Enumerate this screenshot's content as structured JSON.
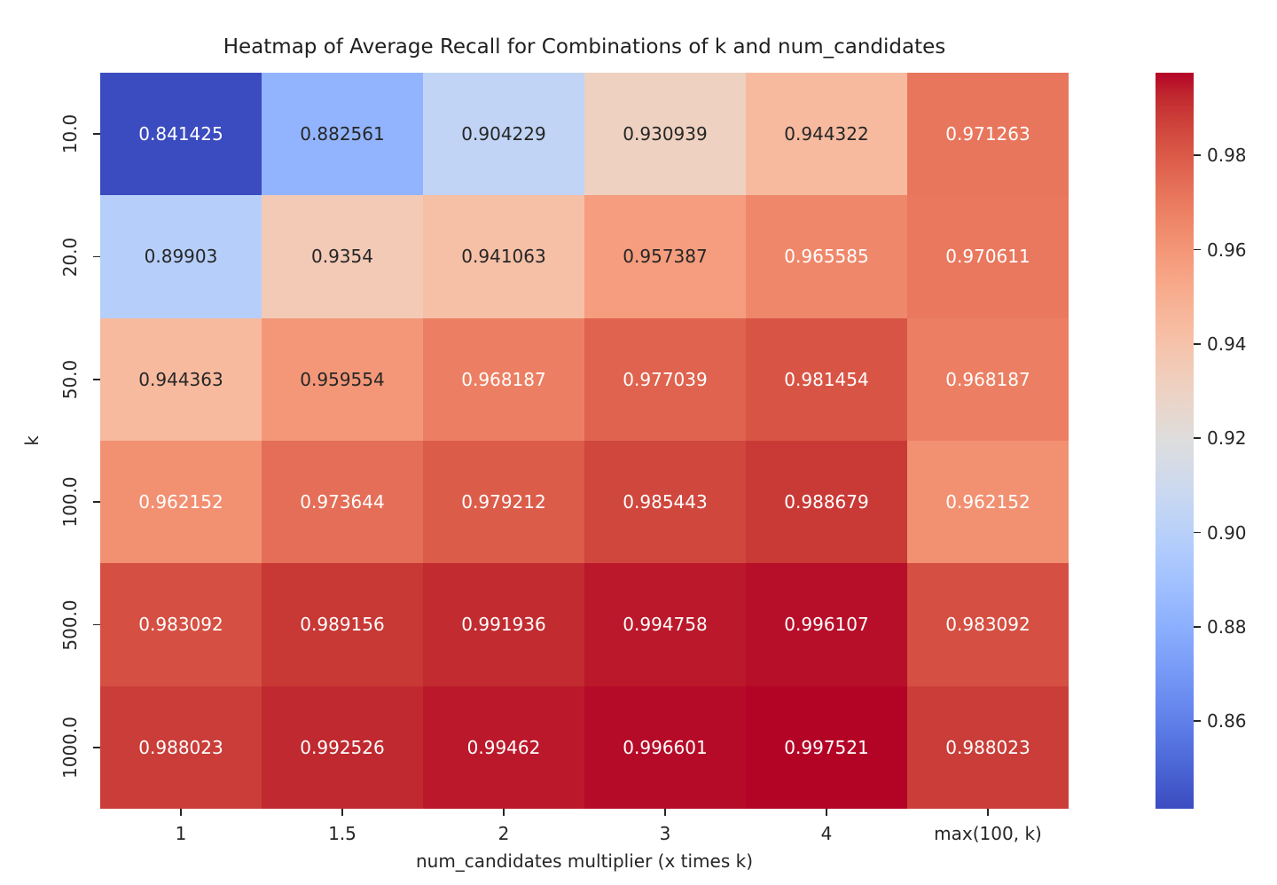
{
  "figure": {
    "background": "#ffffff"
  },
  "chart_data": {
    "type": "heatmap",
    "title": "Heatmap of Average Recall for Combinations of k and num_candidates",
    "xlabel": "num_candidates multiplier (x times k)",
    "ylabel": "k",
    "x_tick_labels": [
      "1",
      "1.5",
      "2",
      "3",
      "4",
      "max(100, k)"
    ],
    "y_tick_labels": [
      "10.0",
      "20.0",
      "50.0",
      "100.0",
      "500.0",
      "1000.0"
    ],
    "values": [
      [
        0.841425,
        0.882561,
        0.904229,
        0.930939,
        0.944322,
        0.971263
      ],
      [
        0.89903,
        0.9354,
        0.941063,
        0.957387,
        0.965585,
        0.970611
      ],
      [
        0.944363,
        0.959554,
        0.968187,
        0.977039,
        0.981454,
        0.968187
      ],
      [
        0.962152,
        0.973644,
        0.979212,
        0.985443,
        0.988679,
        0.962152
      ],
      [
        0.983092,
        0.989156,
        0.991936,
        0.994758,
        0.996107,
        0.983092
      ],
      [
        0.988023,
        0.992526,
        0.99462,
        0.996601,
        0.997521,
        0.988023
      ]
    ],
    "cell_labels": [
      [
        "0.841425",
        "0.882561",
        "0.904229",
        "0.930939",
        "0.944322",
        "0.971263"
      ],
      [
        "0.89903",
        "0.9354",
        "0.941063",
        "0.957387",
        "0.965585",
        "0.970611"
      ],
      [
        "0.944363",
        "0.959554",
        "0.968187",
        "0.977039",
        "0.981454",
        "0.968187"
      ],
      [
        "0.962152",
        "0.973644",
        "0.979212",
        "0.985443",
        "0.988679",
        "0.962152"
      ],
      [
        "0.983092",
        "0.989156",
        "0.991936",
        "0.994758",
        "0.996107",
        "0.983092"
      ],
      [
        "0.988023",
        "0.992526",
        "0.99462",
        "0.996601",
        "0.997521",
        "0.988023"
      ]
    ],
    "vmin": 0.841425,
    "vmax": 0.997521,
    "colormap": {
      "name": "coolwarm",
      "low": "#3b4cc0",
      "mid": "#dddddd",
      "high": "#b40426"
    },
    "annotation_text_dark": "#262626",
    "annotation_text_light": "#ffffff",
    "colorbar": {
      "position": "right",
      "tick_labels": [
        "0.86",
        "0.88",
        "0.90",
        "0.92",
        "0.94",
        "0.96",
        "0.98"
      ],
      "tick_values": [
        0.86,
        0.88,
        0.9,
        0.92,
        0.94,
        0.96,
        0.98
      ]
    },
    "legend": null,
    "grid": false
  }
}
